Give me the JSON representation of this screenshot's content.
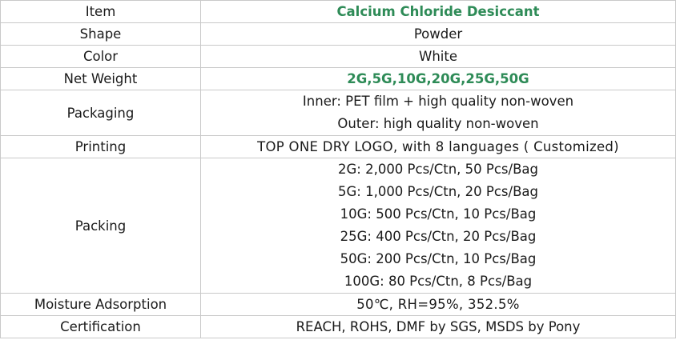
{
  "table": {
    "rows": [
      {
        "label": "Item",
        "value": "Calcium Chloride Desiccant"
      },
      {
        "label": "Shape",
        "value": "Powder"
      },
      {
        "label": "Color",
        "value": "White"
      },
      {
        "label": "Net Weight",
        "value": "2G,5G,10G,20G,25G,50G"
      },
      {
        "label": "Packaging",
        "lines": [
          "Inner: PET film + high quality non-woven",
          "Outer: high quality non-woven"
        ]
      },
      {
        "label": "Printing",
        "value": "TOP ONE DRY LOGO, with 8 languages ( Customized)"
      },
      {
        "label": "Packing",
        "lines": [
          "2G: 2,000 Pcs/Ctn, 50 Pcs/Bag",
          "5G: 1,000 Pcs/Ctn, 20 Pcs/Bag",
          "10G: 500 Pcs/Ctn, 10 Pcs/Bag",
          "25G: 400 Pcs/Ctn, 20 Pcs/Bag",
          "50G: 200 Pcs/Ctn, 10 Pcs/Bag",
          "100G: 80 Pcs/Ctn, 8 Pcs/Bag"
        ]
      },
      {
        "label": "Moisture Adsorption",
        "value": "50℃, RH=95%, 352.5%"
      },
      {
        "label": "Certification",
        "value": "REACH, ROHS, DMF by SGS, MSDS by Pony"
      }
    ]
  }
}
